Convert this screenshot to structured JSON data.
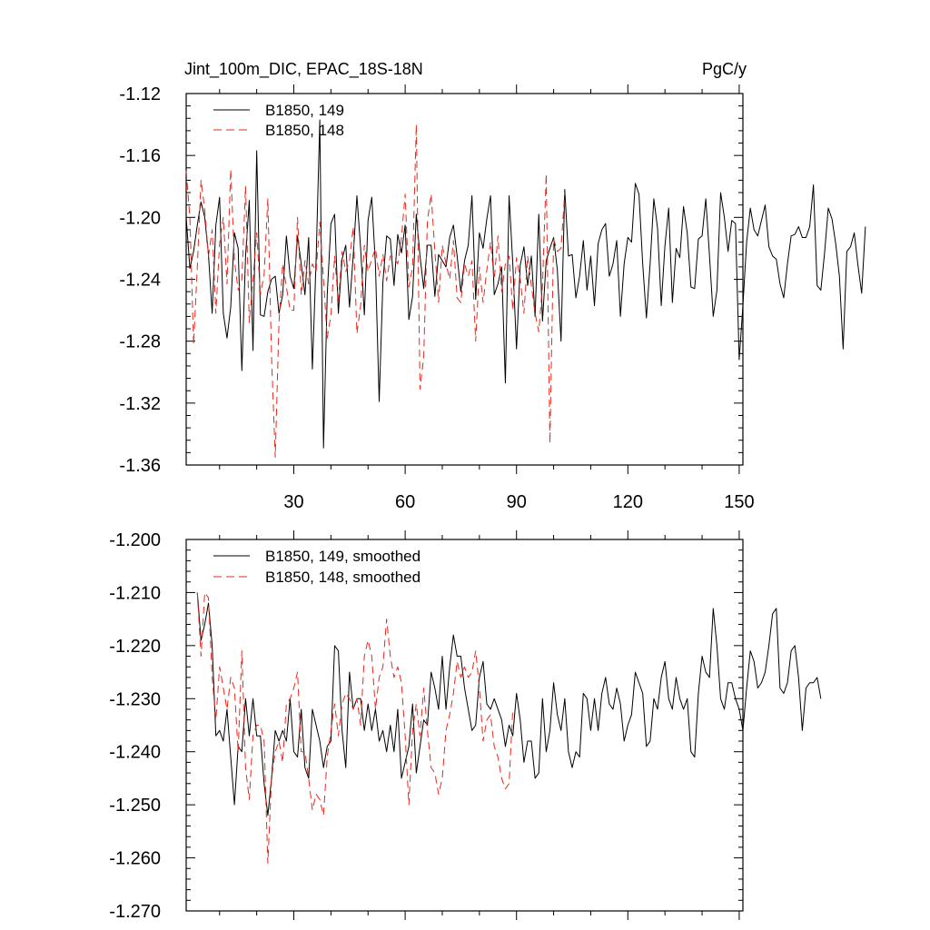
{
  "chart_data": [
    {
      "type": "line",
      "title": "Jint_100m_DIC, EPAC_18S-18N",
      "units": "PgC/y",
      "xlim": [
        1,
        151
      ],
      "ylim": [
        -1.36,
        -1.12
      ],
      "yticks": [
        -1.12,
        -1.16,
        -1.2,
        -1.24,
        -1.28,
        -1.32,
        -1.36
      ],
      "ytick_labels": [
        "-1.12",
        "-1.16",
        "-1.20",
        "-1.24",
        "-1.28",
        "-1.32",
        "-1.36"
      ],
      "xticks": [
        30,
        60,
        90,
        120,
        150
      ],
      "xtick_labels": [
        "30",
        "60",
        "90",
        "120",
        "150"
      ],
      "legend_position": "top-left",
      "series": [
        {
          "name": "B1850, 149",
          "color": "#000000",
          "dash": "solid",
          "x_start": 1,
          "values": [
            -1.2,
            -1.233,
            -1.222,
            -1.205,
            -1.19,
            -1.2,
            -1.224,
            -1.262,
            -1.205,
            -1.187,
            -1.262,
            -1.278,
            -1.258,
            -1.21,
            -1.22,
            -1.299,
            -1.225,
            -1.189,
            -1.286,
            -1.157,
            -1.263,
            -1.264,
            -1.248,
            -1.24,
            -1.238,
            -1.262,
            -1.25,
            -1.212,
            -1.238,
            -1.246,
            -1.212,
            -1.23,
            -1.25,
            -1.213,
            -1.298,
            -1.228,
            -1.137,
            -1.349,
            -1.25,
            -1.204,
            -1.198,
            -1.262,
            -1.227,
            -1.218,
            -1.258,
            -1.225,
            -1.186,
            -1.22,
            -1.263,
            -1.202,
            -1.187,
            -1.231,
            -1.319,
            -1.242,
            -1.212,
            -1.214,
            -1.244,
            -1.211,
            -1.223,
            -1.205,
            -1.266,
            -1.251,
            -1.198,
            -1.225,
            -1.246,
            -1.218,
            -1.218,
            -1.251,
            -1.224,
            -1.228,
            -1.232,
            -1.213,
            -1.205,
            -1.225,
            -1.248,
            -1.228,
            -1.218,
            -1.186,
            -1.253,
            -1.21,
            -1.22,
            -1.201,
            -1.186,
            -1.25,
            -1.243,
            -1.232,
            -1.307,
            -1.186,
            -1.23,
            -1.285,
            -1.231,
            -1.219,
            -1.244,
            -1.225,
            -1.264,
            -1.198,
            -1.267,
            -1.228,
            -1.22,
            -1.213,
            -1.234,
            -1.28,
            -1.182,
            -1.225,
            -1.224,
            -1.252,
            -1.238,
            -1.215,
            -1.247,
            -1.225,
            -1.257,
            -1.217,
            -1.208,
            -1.204,
            -1.238,
            -1.23,
            -1.215,
            -1.264,
            -1.23,
            -1.213,
            -1.216,
            -1.178,
            -1.185,
            -1.23,
            -1.265,
            -1.23,
            -1.188,
            -1.207,
            -1.257,
            -1.218,
            -1.194,
            -1.255,
            -1.22,
            -1.226,
            -1.193,
            -1.21,
            -1.245,
            -1.246,
            -1.214,
            -1.212,
            -1.188,
            -1.225,
            -1.264,
            -1.247,
            -1.184,
            -1.2,
            -1.222,
            -1.202,
            -1.204,
            -1.292,
            -1.257,
            -1.216,
            -1.194,
            -1.208,
            -1.212,
            -1.202,
            -1.192,
            -1.219,
            -1.225,
            -1.227,
            -1.243,
            -1.252,
            -1.23,
            -1.212,
            -1.211,
            -1.206,
            -1.213,
            -1.213,
            -1.206,
            -1.179,
            -1.244,
            -1.247,
            -1.223,
            -1.194,
            -1.201,
            -1.217,
            -1.238,
            -1.285,
            -1.222,
            -1.219,
            -1.21,
            -1.231,
            -1.249,
            -1.206
          ]
        },
        {
          "name": "B1850, 148",
          "color": "#e8281e",
          "dash": "dashed",
          "x_start": 1,
          "values": [
            -1.17,
            -1.2,
            -1.282,
            -1.232,
            -1.176,
            -1.195,
            -1.225,
            -1.208,
            -1.262,
            -1.217,
            -1.2,
            -1.243,
            -1.169,
            -1.228,
            -1.247,
            -1.24,
            -1.18,
            -1.268,
            -1.24,
            -1.21,
            -1.25,
            -1.237,
            -1.188,
            -1.29,
            -1.355,
            -1.268,
            -1.23,
            -1.245,
            -1.26,
            -1.26,
            -1.2,
            -1.25,
            -1.228,
            -1.243,
            -1.23,
            -1.235,
            -1.203,
            -1.24,
            -1.278,
            -1.263,
            -1.225,
            -1.255,
            -1.222,
            -1.235,
            -1.228,
            -1.206,
            -1.275,
            -1.257,
            -1.218,
            -1.235,
            -1.227,
            -1.22,
            -1.238,
            -1.224,
            -1.241,
            -1.225,
            -1.226,
            -1.23,
            -1.213,
            -1.185,
            -1.245,
            -1.232,
            -1.14,
            -1.311,
            -1.29,
            -1.202,
            -1.185,
            -1.222,
            -1.255,
            -1.218,
            -1.23,
            -1.24,
            -1.215,
            -1.252,
            -1.255,
            -1.23,
            -1.238,
            -1.228,
            -1.28,
            -1.232,
            -1.255,
            -1.234,
            -1.216,
            -1.24,
            -1.212,
            -1.248,
            -1.23,
            -1.225,
            -1.26,
            -1.226,
            -1.24,
            -1.262,
            -1.225,
            -1.244,
            -1.262,
            -1.274,
            -1.244,
            -1.172,
            -1.346,
            -1.214,
            -1.222,
            -1.22,
            -1.184
          ]
        }
      ]
    },
    {
      "type": "line",
      "title": "",
      "xlim": [
        1,
        151
      ],
      "ylim": [
        -1.27,
        -1.2
      ],
      "yticks": [
        -1.2,
        -1.21,
        -1.22,
        -1.23,
        -1.24,
        -1.25,
        -1.26,
        -1.27
      ],
      "ytick_labels": [
        "-1.200",
        "-1.210",
        "-1.220",
        "-1.230",
        "-1.240",
        "-1.250",
        "-1.260",
        "-1.270"
      ],
      "xticks": [
        30,
        60,
        90,
        120,
        150
      ],
      "legend_position": "top-left",
      "series": [
        {
          "name": "B1850, 149, smoothed",
          "color": "#000000",
          "dash": "solid",
          "x_start": 4,
          "values": [
            -1.21,
            -1.219,
            -1.216,
            -1.212,
            -1.22,
            -1.237,
            -1.236,
            -1.238,
            -1.232,
            -1.241,
            -1.25,
            -1.239,
            -1.24,
            -1.23,
            -1.237,
            -1.23,
            -1.237,
            -1.237,
            -1.246,
            -1.252,
            -1.245,
            -1.236,
            -1.238,
            -1.236,
            -1.238,
            -1.23,
            -1.24,
            -1.241,
            -1.232,
            -1.243,
            -1.245,
            -1.232,
            -1.235,
            -1.238,
            -1.243,
            -1.239,
            -1.238,
            -1.22,
            -1.221,
            -1.236,
            -1.243,
            -1.225,
            -1.232,
            -1.23,
            -1.23,
            -1.236,
            -1.231,
            -1.236,
            -1.232,
            -1.238,
            -1.236,
            -1.24,
            -1.235,
            -1.24,
            -1.232,
            -1.245,
            -1.242,
            -1.239,
            -1.231,
            -1.244,
            -1.239,
            -1.234,
            -1.235,
            -1.225,
            -1.228,
            -1.232,
            -1.222,
            -1.232,
            -1.224,
            -1.218,
            -1.222,
            -1.222,
            -1.228,
            -1.232,
            -1.236,
            -1.235,
            -1.226,
            -1.223,
            -1.231,
            -1.232,
            -1.23,
            -1.232,
            -1.234,
            -1.239,
            -1.235,
            -1.237,
            -1.229,
            -1.234,
            -1.242,
            -1.238,
            -1.238,
            -1.245,
            -1.244,
            -1.23,
            -1.24,
            -1.236,
            -1.227,
            -1.233,
            -1.236,
            -1.23,
            -1.24,
            -1.243,
            -1.24,
            -1.241,
            -1.229,
            -1.23,
            -1.236,
            -1.23,
            -1.236,
            -1.229,
            -1.226,
            -1.231,
            -1.232,
            -1.228,
            -1.231,
            -1.238,
            -1.235,
            -1.233,
            -1.225,
            -1.227,
            -1.229,
            -1.239,
            -1.238,
            -1.23,
            -1.232,
            -1.226,
            -1.223,
            -1.23,
            -1.232,
            -1.226,
            -1.23,
            -1.232,
            -1.23,
            -1.24,
            -1.241,
            -1.229,
            -1.222,
            -1.225,
            -1.226,
            -1.213,
            -1.22,
            -1.23,
            -1.232,
            -1.227,
            -1.227,
            -1.23,
            -1.232,
            -1.236,
            -1.228,
            -1.221,
            -1.223,
            -1.228,
            -1.227,
            -1.225,
            -1.22,
            -1.214,
            -1.213,
            -1.228,
            -1.229,
            -1.227,
            -1.221,
            -1.22,
            -1.226,
            -1.236,
            -1.228,
            -1.227,
            -1.227,
            -1.226,
            -1.23
          ]
        },
        {
          "name": "B1850, 148, smoothed",
          "color": "#e8281e",
          "dash": "dashed",
          "x_start": 4,
          "values": [
            -1.21,
            -1.222,
            -1.21,
            -1.211,
            -1.226,
            -1.234,
            -1.224,
            -1.228,
            -1.232,
            -1.226,
            -1.228,
            -1.24,
            -1.221,
            -1.243,
            -1.249,
            -1.237,
            -1.235,
            -1.235,
            -1.238,
            -1.261,
            -1.245,
            -1.24,
            -1.238,
            -1.242,
            -1.231,
            -1.23,
            -1.228,
            -1.225,
            -1.24,
            -1.24,
            -1.245,
            -1.251,
            -1.248,
            -1.249,
            -1.252,
            -1.241,
            -1.236,
            -1.231,
            -1.237,
            -1.231,
            -1.229,
            -1.23,
            -1.232,
            -1.23,
            -1.235,
            -1.222,
            -1.219,
            -1.222,
            -1.232,
            -1.226,
            -1.224,
            -1.215,
            -1.222,
            -1.226,
            -1.224,
            -1.227,
            -1.237,
            -1.25,
            -1.236,
            -1.231,
            -1.237,
            -1.228,
            -1.236,
            -1.243,
            -1.244,
            -1.248,
            -1.245,
            -1.236,
            -1.233,
            -1.229,
            -1.223,
            -1.226,
            -1.224,
            -1.226,
            -1.225,
            -1.221,
            -1.228,
            -1.238,
            -1.234,
            -1.233,
            -1.239,
            -1.241,
            -1.245,
            -1.247,
            -1.246,
            -1.232
          ]
        }
      ]
    }
  ]
}
